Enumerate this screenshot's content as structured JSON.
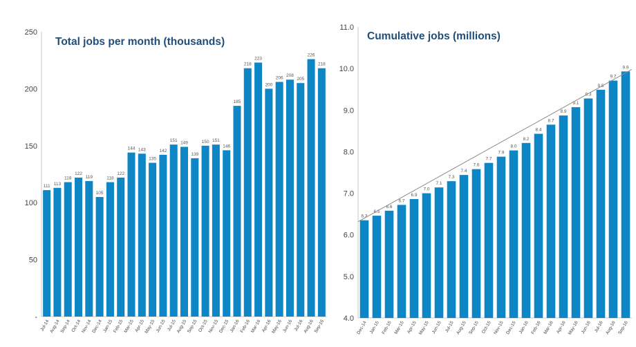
{
  "chart_data": [
    {
      "type": "bar",
      "title": "Total jobs per month (thousands)",
      "xlabel": "",
      "ylabel": "",
      "ylim": [
        0,
        250
      ],
      "yticks": [
        "-",
        "50",
        "100",
        "150",
        "200",
        "250"
      ],
      "ytick_values": [
        0,
        50,
        100,
        150,
        200,
        250
      ],
      "grid": false,
      "color": "#0e86c5",
      "categories": [
        "Jul-14",
        "Aug-14",
        "Sep-14",
        "Oct-14",
        "Nov-14",
        "Dec-14",
        "Jan-15",
        "Feb-15",
        "Mar-15",
        "Apr-15",
        "May-15",
        "Jun-15",
        "Jul-15",
        "Aug-15",
        "Sep-15",
        "Oct-15",
        "Nov-15",
        "Dec-15",
        "Jan-16",
        "Feb-16",
        "Mar-16",
        "Apr-16",
        "May-16",
        "Jun-16",
        "Jul-16",
        "Aug-16",
        "Sep-16"
      ],
      "values": [
        111,
        113,
        118,
        122,
        119,
        105,
        118,
        122,
        144,
        143,
        135,
        142,
        151,
        149,
        139,
        150,
        151,
        146,
        185,
        218,
        223,
        200,
        206,
        208,
        205,
        226,
        218
      ],
      "data_labels": [
        "111",
        "113",
        "118",
        "122",
        "119",
        "105",
        "118",
        "122",
        "144",
        "143",
        "135",
        "142",
        "151",
        "149",
        "139",
        "150",
        "151",
        "146",
        "185",
        "218",
        "223",
        "200",
        "206",
        "208",
        "205",
        "226",
        "218"
      ]
    },
    {
      "type": "bar",
      "title": "Cumulative jobs (millions)",
      "xlabel": "",
      "ylabel": "",
      "ylim": [
        4.0,
        11.0
      ],
      "yticks": [
        "4.0",
        "5.0",
        "6.0",
        "7.0",
        "8.0",
        "9.0",
        "10.0",
        "11.0"
      ],
      "ytick_values": [
        4,
        5,
        6,
        7,
        8,
        9,
        10,
        11
      ],
      "grid": false,
      "color": "#0e86c5",
      "trendline": true,
      "categories": [
        "Dec-14",
        "Jan-15",
        "Feb-15",
        "Mar-15",
        "Apr-15",
        "May-15",
        "Jun-15",
        "Jul-15",
        "Aug-15",
        "Sep-15",
        "Oct-15",
        "Nov-15",
        "Dec-15",
        "Jan-16",
        "Feb-16",
        "Mar-16",
        "Apr-16",
        "May-16",
        "Jun-16",
        "Jul-16",
        "Aug-16",
        "Sep-16"
      ],
      "values": [
        6.35,
        6.46,
        6.58,
        6.72,
        6.86,
        7.0,
        7.14,
        7.29,
        7.44,
        7.58,
        7.73,
        7.88,
        8.03,
        8.21,
        8.43,
        8.65,
        8.87,
        9.07,
        9.28,
        9.49,
        9.71,
        9.93
      ],
      "data_labels": [
        "6.3",
        "6.5",
        "6.6",
        "6.7",
        "6.9",
        "7.0",
        "7.1",
        "7.3",
        "7.4",
        "7.6",
        "7.7",
        "7.9",
        "8.0",
        "8.2",
        "8.4",
        "8.7",
        "8.9",
        "9.1",
        "9.3",
        "9.5",
        "9.7",
        "9.9"
      ]
    }
  ]
}
